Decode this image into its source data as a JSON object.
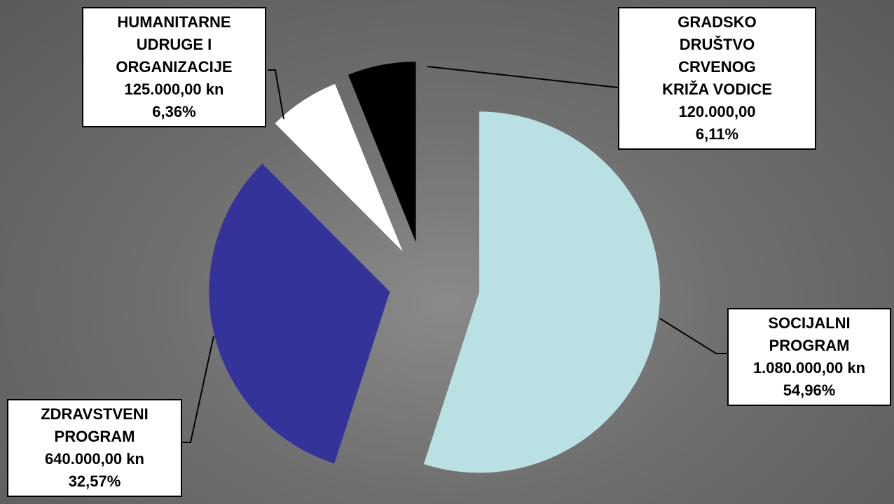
{
  "chart_data": {
    "type": "pie",
    "categories": [
      "SOCIJALNI PROGRAM",
      "ZDRAVSTVENI PROGRAM",
      "HUMANITARNE UDRUGE I ORGANIZACIJE",
      "GRADSKO DRUŠTVO CRVENOG KRIŽA VODICE"
    ],
    "values": [
      1080000,
      640000,
      125000,
      120000
    ],
    "value_labels": [
      "1.080.000,00 kn",
      "640.000,00 kn",
      "125.000,00 kn",
      "120.000,00"
    ],
    "percents": [
      54.96,
      32.57,
      6.36,
      6.11
    ],
    "percent_labels": [
      "54,96%",
      "32,57%",
      "6,36%",
      "6,11%"
    ],
    "colors": [
      "#b9e0e3",
      "#33339a",
      "#ffffff",
      "#000000"
    ]
  }
}
